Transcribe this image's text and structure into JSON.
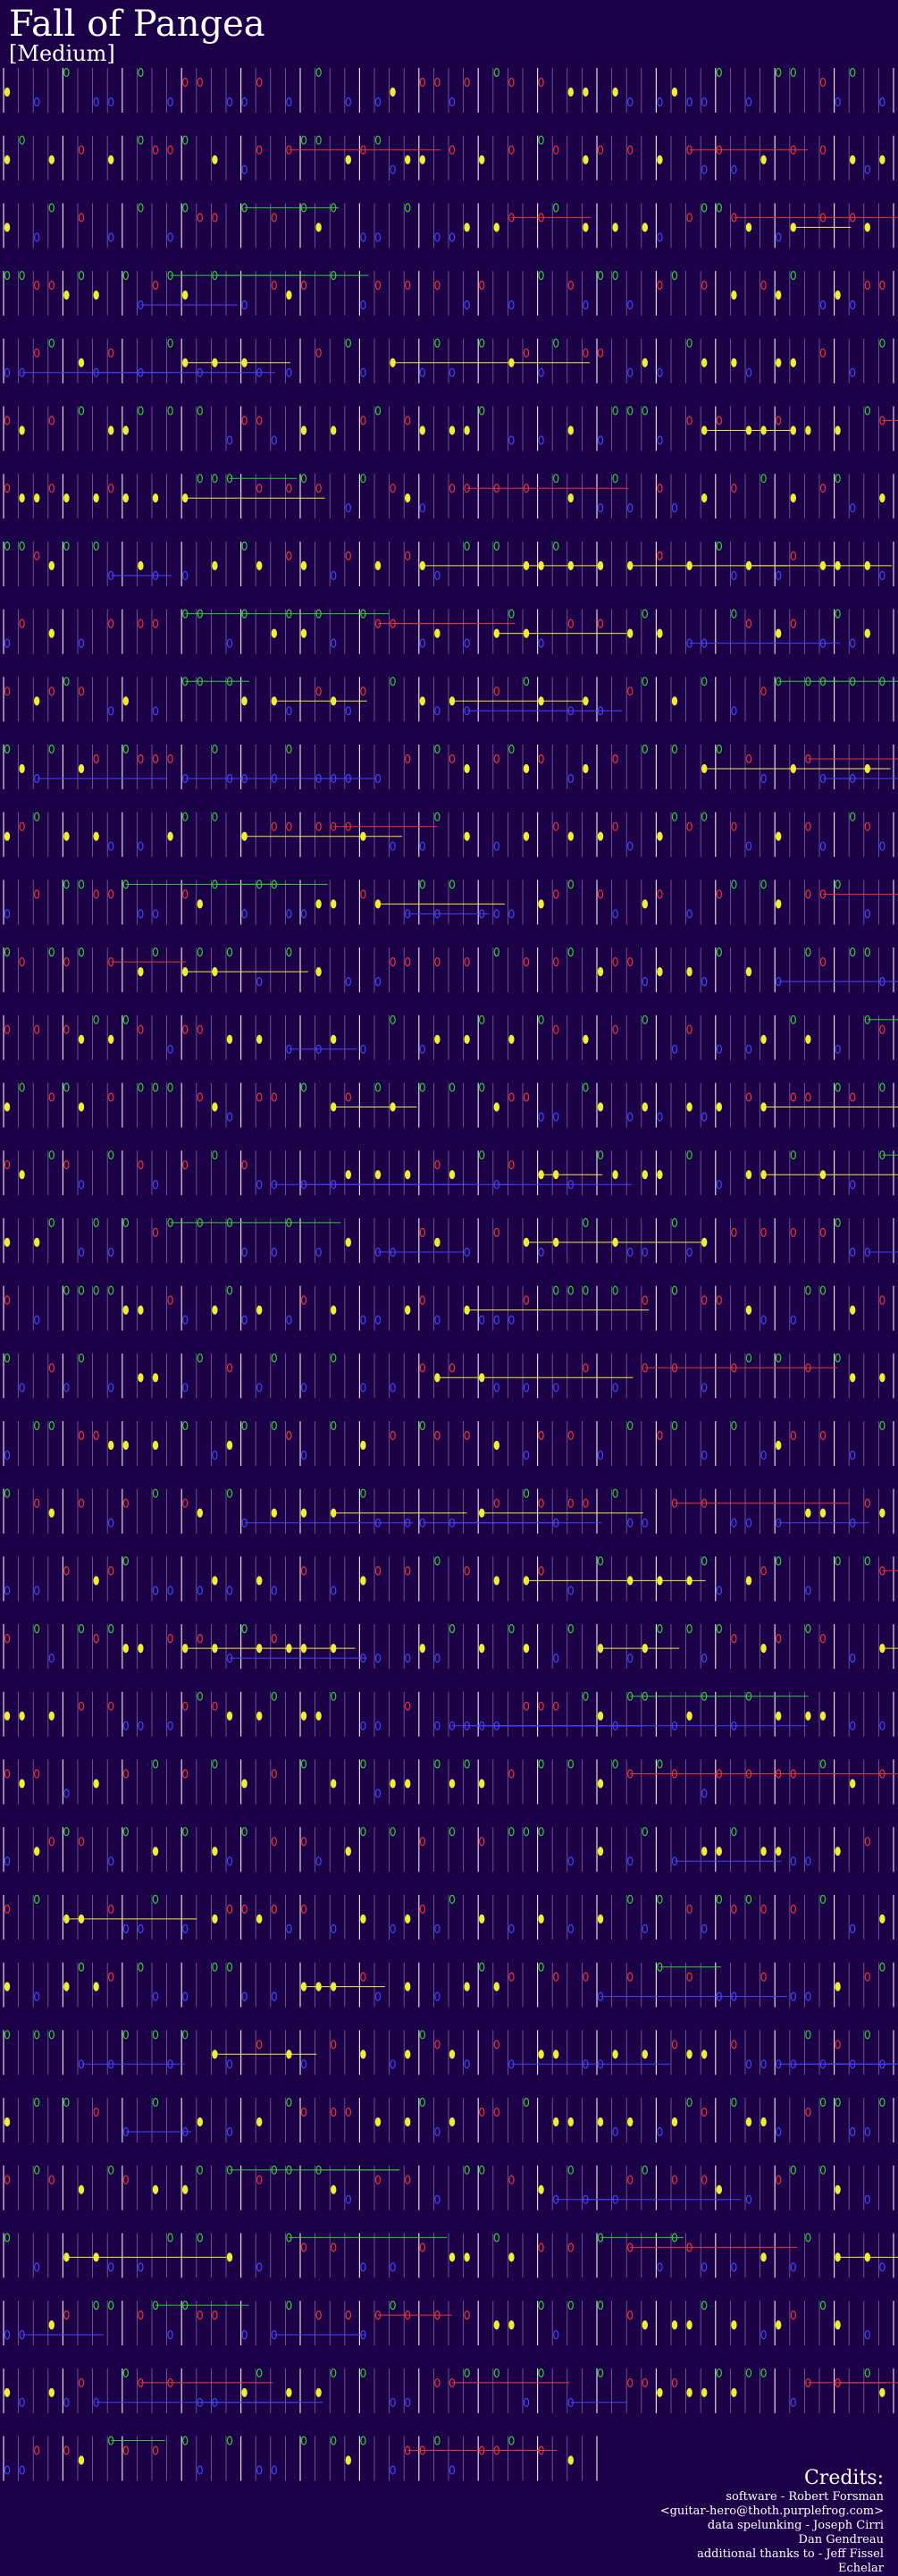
{
  "header": {
    "title": "Fall of Pangea",
    "difficulty": "[Medium]"
  },
  "credits": {
    "heading": "Credits:",
    "lines": [
      "software - Robert Forsman",
      "<guitar-hero@thoth.purplefrog.com>",
      "data spelunking - Joseph Cirri",
      "Dan Gendreau",
      "additional thanks to - Jeff Fissel",
      "Echelar"
    ]
  }
}
